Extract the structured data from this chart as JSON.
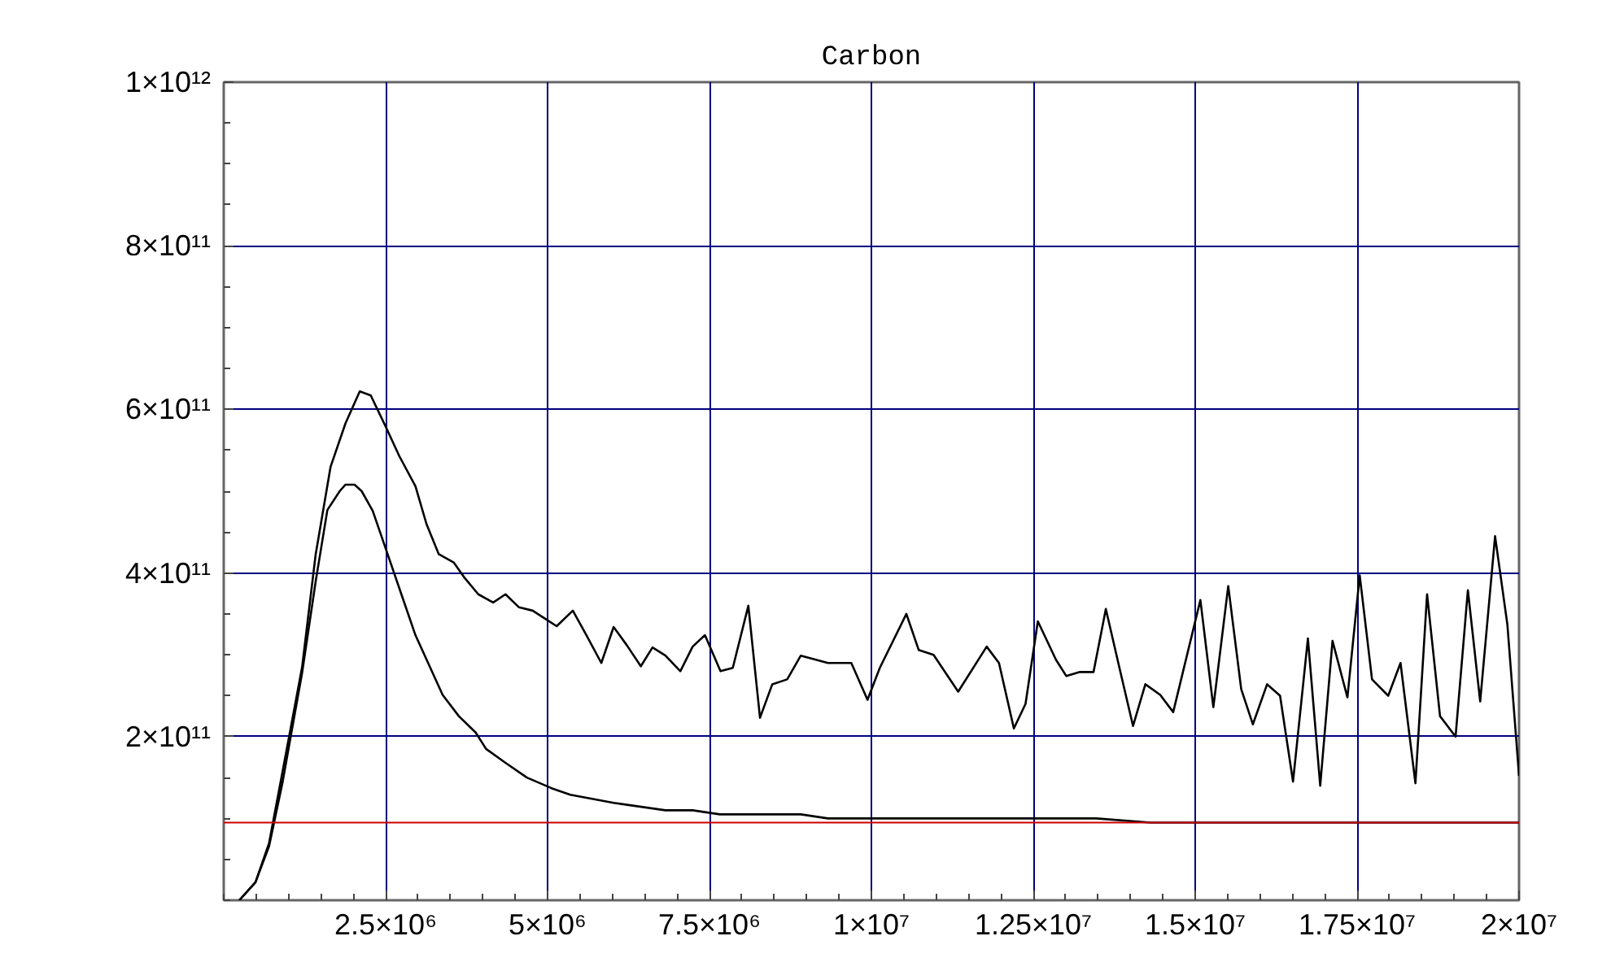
{
  "chart_data": {
    "type": "line",
    "title": "Carbon",
    "xlim": [
      0,
      20000000
    ],
    "ylim": [
      0,
      1000000000000
    ],
    "xticks": [
      {
        "value": 2500000,
        "label": "2.5×10⁶"
      },
      {
        "value": 5000000,
        "label": "5×10⁶"
      },
      {
        "value": 7500000,
        "label": "7.5×10⁶"
      },
      {
        "value": 10000000,
        "label": "1×10⁷"
      },
      {
        "value": 12500000,
        "label": "1.25×10⁷"
      },
      {
        "value": 15000000,
        "label": "1.5×10⁷"
      },
      {
        "value": 17500000,
        "label": "1.75×10⁷"
      },
      {
        "value": 20000000,
        "label": "2×10⁷"
      }
    ],
    "yticks": [
      {
        "value": 200000000000,
        "label": "2×10¹¹"
      },
      {
        "value": 400000000000,
        "label": "4×10¹¹"
      },
      {
        "value": 600000000000,
        "label": "6×10¹¹"
      },
      {
        "value": 800000000000,
        "label": "8×10¹¹"
      },
      {
        "value": 1000000000000,
        "label": "1×10¹²"
      }
    ],
    "grid": true,
    "marker": "none",
    "line_style": "solid",
    "ref_lines": [
      {
        "axis": "y",
        "value": 95000000000,
        "label": null,
        "color": "#cc0000"
      }
    ],
    "series": [
      {
        "color": "#000000",
        "x": [
          240000,
          490000,
          700000,
          910000,
          1210000,
          1420000,
          1650000,
          1880000,
          2100000,
          2270000,
          2500000,
          2710000,
          2960000,
          3130000,
          3320000,
          3550000,
          3720000,
          3930000,
          4160000,
          4350000,
          4560000,
          4770000,
          5140000,
          5390000,
          5600000,
          5830000,
          6020000,
          6230000,
          6440000,
          6620000,
          6820000,
          7050000,
          7240000,
          7430000,
          7670000,
          7860000,
          8100000,
          8280000,
          8470000,
          8700000,
          8910000,
          9330000,
          9690000,
          9940000,
          10130000,
          10540000,
          10730000,
          10960000,
          11340000,
          11780000,
          11970000,
          12200000,
          12380000,
          12570000,
          12850000,
          13010000,
          13220000,
          13430000,
          13620000,
          13830000,
          14040000,
          14230000,
          14460000,
          14660000,
          15080000,
          15280000,
          15510000,
          15710000,
          15890000,
          16110000,
          16310000,
          16510000,
          16740000,
          16930000,
          17120000,
          17350000,
          17540000,
          17730000,
          17980000,
          18170000,
          18400000,
          18580000,
          18780000,
          19020000,
          19210000,
          19400000,
          19630000,
          19820000,
          20000000
        ],
        "values": [
          0,
          22000000000,
          70000000000,
          158000000000,
          285000000000,
          423000000000,
          530000000000,
          583000000000,
          622000000000,
          617000000000,
          579000000000,
          543000000000,
          506000000000,
          460000000000,
          423000000000,
          413000000000,
          394000000000,
          374000000000,
          364000000000,
          374000000000,
          358000000000,
          354000000000,
          335000000000,
          354000000000,
          324000000000,
          290000000000,
          334000000000,
          311000000000,
          286000000000,
          309000000000,
          299000000000,
          280000000000,
          310000000000,
          324000000000,
          280000000000,
          284000000000,
          360000000000,
          223000000000,
          264000000000,
          270000000000,
          299000000000,
          290000000000,
          290000000000,
          245000000000,
          284000000000,
          350000000000,
          306000000000,
          300000000000,
          255000000000,
          310000000000,
          290000000000,
          210000000000,
          240000000000,
          341000000000,
          294000000000,
          274000000000,
          279000000000,
          279000000000,
          356000000000,
          284000000000,
          213000000000,
          264000000000,
          251000000000,
          230000000000,
          367000000000,
          236000000000,
          384000000000,
          258000000000,
          215000000000,
          264000000000,
          250000000000,
          145000000000,
          320000000000,
          140000000000,
          317000000000,
          248000000000,
          397000000000,
          270000000000,
          250000000000,
          290000000000,
          143000000000,
          374000000000,
          225000000000,
          200000000000,
          379000000000,
          243000000000,
          445000000000,
          337000000000,
          152000000000
        ]
      },
      {
        "color": "#000000",
        "x": [
          240000,
          490000,
          700000,
          910000,
          1210000,
          1420000,
          1600000,
          1790000,
          1880000,
          2020000,
          2130000,
          2300000,
          2500000,
          2760000,
          2960000,
          3380000,
          3630000,
          3890000,
          4050000,
          4350000,
          4680000,
          5060000,
          5350000,
          6020000,
          6820000,
          7240000,
          7660000,
          8910000,
          9330000,
          13470000,
          14310000,
          20000000
        ],
        "values": [
          0,
          22000000000,
          66000000000,
          145000000000,
          278000000000,
          390000000000,
          477000000000,
          500000000000,
          508000000000,
          508000000000,
          500000000000,
          476000000000,
          430000000000,
          370000000000,
          324000000000,
          251000000000,
          225000000000,
          205000000000,
          185000000000,
          168000000000,
          150000000000,
          137000000000,
          129000000000,
          119000000000,
          110000000000,
          110000000000,
          105000000000,
          105000000000,
          100000000000,
          100000000000,
          95000000000,
          95000000000
        ]
      }
    ]
  }
}
